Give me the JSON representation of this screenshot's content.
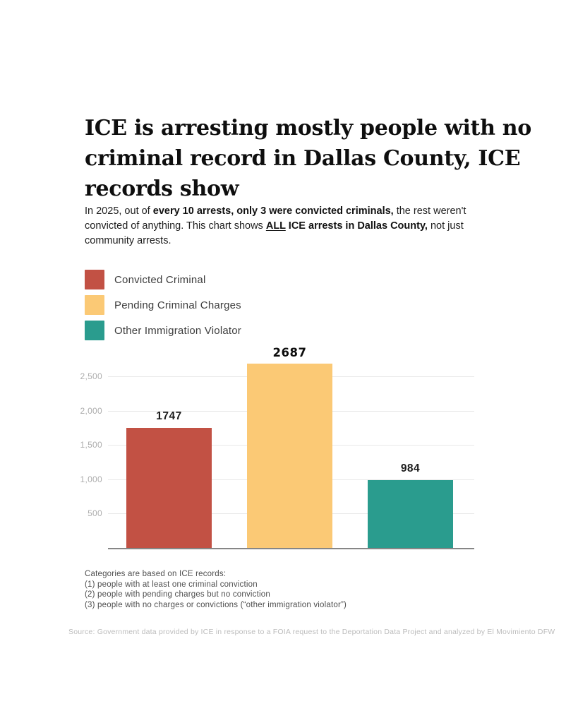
{
  "header": {
    "title_lines": [
      "ICE is arresting mostly people with no",
      "criminal record in Dallas County, ICE",
      "records show"
    ],
    "subtitle_segments": [
      {
        "text": "In 2025, out of ",
        "bold": false,
        "underline": false
      },
      {
        "text": "every 10 arrests, only 3 were convicted criminals,",
        "bold": true,
        "underline": false
      },
      {
        "text": " the rest weren't convicted of anything. This chart shows ",
        "bold": false,
        "underline": false
      },
      {
        "text": "ALL",
        "bold": true,
        "underline": true
      },
      {
        "text": " ICE arrests in Dallas County,",
        "bold": true,
        "underline": false
      },
      {
        "text": " not just community arrests.",
        "bold": false,
        "underline": false
      }
    ]
  },
  "chart_data": {
    "type": "bar",
    "title": "ICE is arresting mostly people with no criminal record in Dallas County, ICE records show",
    "categories": [
      "Convicted Criminal",
      "Pending Criminal Charges",
      "Other Immigration Violator"
    ],
    "values": [
      1747,
      2687,
      984
    ],
    "value_labels": [
      "1747",
      "2687",
      "984"
    ],
    "bar_colors": [
      "#C25144",
      "#FBC975",
      "#2A9C8E"
    ],
    "yticks": {
      "values": [
        500,
        1000,
        1500,
        2000,
        2500
      ],
      "labels": [
        "500",
        "1,000",
        "1,500",
        "2,000",
        "2,500"
      ]
    },
    "ylim": [
      0,
      2840
    ],
    "xlabel": "",
    "ylabel": "",
    "grid": true,
    "legend_position": "top-left",
    "legend": [
      {
        "label": "Convicted Criminal",
        "color": "#C25144"
      },
      {
        "label": "Pending Criminal Charges",
        "color": "#FBC975"
      },
      {
        "label": "Other Immigration Violator",
        "color": "#2A9C8E"
      }
    ]
  },
  "footnotes": {
    "lines": [
      "Categories are based on ICE records:",
      "(1) people with at least one criminal conviction",
      "(2) people with pending charges but no conviction",
      "(3) people with no charges or convictions (“other immigration violator”)"
    ]
  },
  "source": {
    "text": "Source: Government data provided by ICE in response to a FOIA request to the Deportation Data Project and analyzed by El Movimiento DFW"
  },
  "colors": {
    "background": "#ffffff",
    "title_text": "#0e0e0e",
    "body_text": "#1e1e1e",
    "tick_text": "#adadad",
    "gridline": "#e8e8e8",
    "axis_line": "#868686",
    "footnote_text": "#4e4e4e",
    "source_text": "#bcbcbc"
  }
}
